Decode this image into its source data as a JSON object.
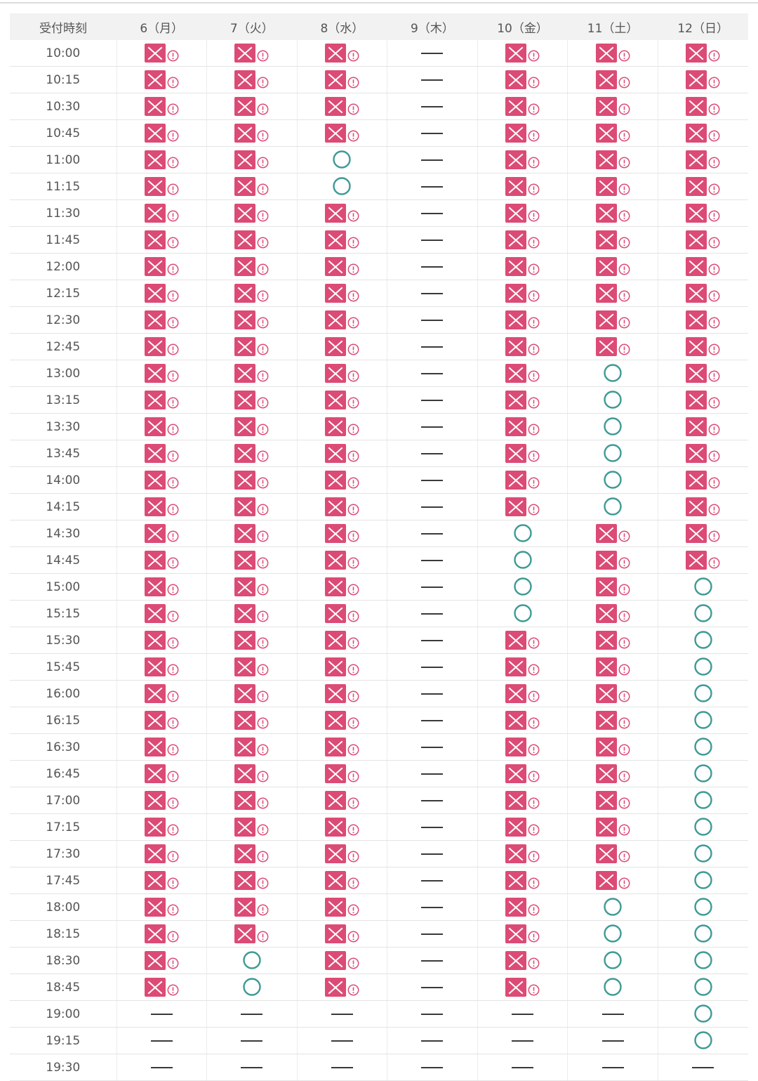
{
  "header": {
    "time_label": "受付時刻",
    "days": [
      "6（月）",
      "7（火）",
      "8（水）",
      "9（木）",
      "10（金）",
      "11（土）",
      "12（日）"
    ]
  },
  "legend": {
    "full": "x-mark-icon",
    "warning": "exclamation-icon",
    "available": "circle-icon",
    "closed": "dash-icon"
  },
  "colors": {
    "full": "#dc4b75",
    "available": "#3f9a96",
    "dash": "#3a3a3a"
  },
  "rows": [
    {
      "time": "10:00",
      "slots": [
        "x",
        "x",
        "x",
        "-",
        "x",
        "x",
        "x"
      ]
    },
    {
      "time": "10:15",
      "slots": [
        "x",
        "x",
        "x",
        "-",
        "x",
        "x",
        "x"
      ]
    },
    {
      "time": "10:30",
      "slots": [
        "x",
        "x",
        "x",
        "-",
        "x",
        "x",
        "x"
      ]
    },
    {
      "time": "10:45",
      "slots": [
        "x",
        "x",
        "x",
        "-",
        "x",
        "x",
        "x"
      ]
    },
    {
      "time": "11:00",
      "slots": [
        "x",
        "x",
        "o",
        "-",
        "x",
        "x",
        "x"
      ]
    },
    {
      "time": "11:15",
      "slots": [
        "x",
        "x",
        "o",
        "-",
        "x",
        "x",
        "x"
      ]
    },
    {
      "time": "11:30",
      "slots": [
        "x",
        "x",
        "x",
        "-",
        "x",
        "x",
        "x"
      ]
    },
    {
      "time": "11:45",
      "slots": [
        "x",
        "x",
        "x",
        "-",
        "x",
        "x",
        "x"
      ]
    },
    {
      "time": "12:00",
      "slots": [
        "x",
        "x",
        "x",
        "-",
        "x",
        "x",
        "x"
      ]
    },
    {
      "time": "12:15",
      "slots": [
        "x",
        "x",
        "x",
        "-",
        "x",
        "x",
        "x"
      ]
    },
    {
      "time": "12:30",
      "slots": [
        "x",
        "x",
        "x",
        "-",
        "x",
        "x",
        "x"
      ]
    },
    {
      "time": "12:45",
      "slots": [
        "x",
        "x",
        "x",
        "-",
        "x",
        "x",
        "x"
      ]
    },
    {
      "time": "13:00",
      "slots": [
        "x",
        "x",
        "x",
        "-",
        "x",
        "o",
        "x"
      ]
    },
    {
      "time": "13:15",
      "slots": [
        "x",
        "x",
        "x",
        "-",
        "x",
        "o",
        "x"
      ]
    },
    {
      "time": "13:30",
      "slots": [
        "x",
        "x",
        "x",
        "-",
        "x",
        "o",
        "x"
      ]
    },
    {
      "time": "13:45",
      "slots": [
        "x",
        "x",
        "x",
        "-",
        "x",
        "o",
        "x"
      ]
    },
    {
      "time": "14:00",
      "slots": [
        "x",
        "x",
        "x",
        "-",
        "x",
        "o",
        "x"
      ]
    },
    {
      "time": "14:15",
      "slots": [
        "x",
        "x",
        "x",
        "-",
        "x",
        "o",
        "x"
      ]
    },
    {
      "time": "14:30",
      "slots": [
        "x",
        "x",
        "x",
        "-",
        "o",
        "x",
        "x"
      ]
    },
    {
      "time": "14:45",
      "slots": [
        "x",
        "x",
        "x",
        "-",
        "o",
        "x",
        "x"
      ]
    },
    {
      "time": "15:00",
      "slots": [
        "x",
        "x",
        "x",
        "-",
        "o",
        "x",
        "o"
      ]
    },
    {
      "time": "15:15",
      "slots": [
        "x",
        "x",
        "x",
        "-",
        "o",
        "x",
        "o"
      ]
    },
    {
      "time": "15:30",
      "slots": [
        "x",
        "x",
        "x",
        "-",
        "x",
        "x",
        "o"
      ]
    },
    {
      "time": "15:45",
      "slots": [
        "x",
        "x",
        "x",
        "-",
        "x",
        "x",
        "o"
      ]
    },
    {
      "time": "16:00",
      "slots": [
        "x",
        "x",
        "x",
        "-",
        "x",
        "x",
        "o"
      ]
    },
    {
      "time": "16:15",
      "slots": [
        "x",
        "x",
        "x",
        "-",
        "x",
        "x",
        "o"
      ]
    },
    {
      "time": "16:30",
      "slots": [
        "x",
        "x",
        "x",
        "-",
        "x",
        "x",
        "o"
      ]
    },
    {
      "time": "16:45",
      "slots": [
        "x",
        "x",
        "x",
        "-",
        "x",
        "x",
        "o"
      ]
    },
    {
      "time": "17:00",
      "slots": [
        "x",
        "x",
        "x",
        "-",
        "x",
        "x",
        "o"
      ]
    },
    {
      "time": "17:15",
      "slots": [
        "x",
        "x",
        "x",
        "-",
        "x",
        "x",
        "o"
      ]
    },
    {
      "time": "17:30",
      "slots": [
        "x",
        "x",
        "x",
        "-",
        "x",
        "x",
        "o"
      ]
    },
    {
      "time": "17:45",
      "slots": [
        "x",
        "x",
        "x",
        "-",
        "x",
        "x",
        "o"
      ]
    },
    {
      "time": "18:00",
      "slots": [
        "x",
        "x",
        "x",
        "-",
        "x",
        "o",
        "o"
      ]
    },
    {
      "time": "18:15",
      "slots": [
        "x",
        "x",
        "x",
        "-",
        "x",
        "o",
        "o"
      ]
    },
    {
      "time": "18:30",
      "slots": [
        "x",
        "o",
        "x",
        "-",
        "x",
        "o",
        "o"
      ]
    },
    {
      "time": "18:45",
      "slots": [
        "x",
        "o",
        "x",
        "-",
        "x",
        "o",
        "o"
      ]
    },
    {
      "time": "19:00",
      "slots": [
        "-",
        "-",
        "-",
        "-",
        "-",
        "-",
        "o"
      ]
    },
    {
      "time": "19:15",
      "slots": [
        "-",
        "-",
        "-",
        "-",
        "-",
        "-",
        "o"
      ]
    },
    {
      "time": "19:30",
      "slots": [
        "-",
        "-",
        "-",
        "-",
        "-",
        "-",
        "-"
      ]
    }
  ]
}
